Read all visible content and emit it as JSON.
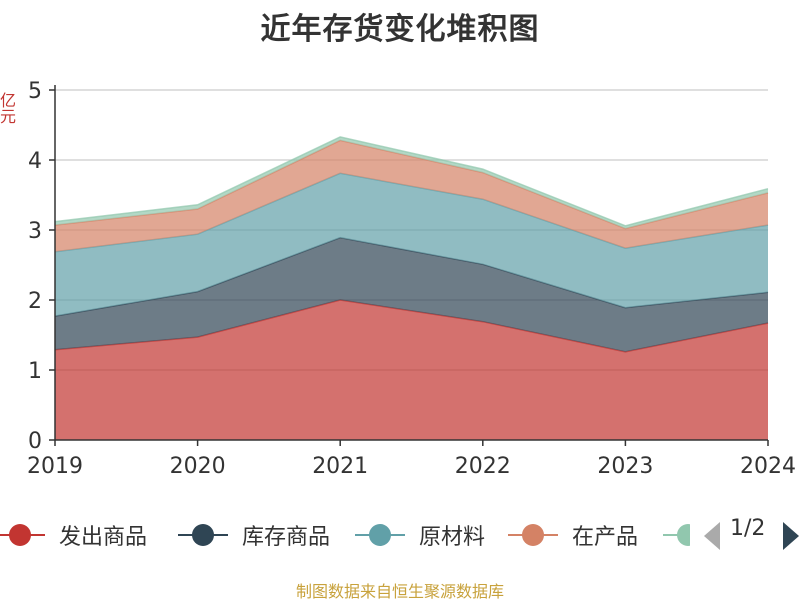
{
  "chart_data": {
    "type": "area",
    "stacked": true,
    "title": "近年存货变化堆积图",
    "ylabel": "亿元",
    "x": [
      "2019",
      "2020",
      "2021",
      "2022",
      "2023",
      "2024"
    ],
    "ylim": [
      0,
      5
    ],
    "yticks": [
      0,
      1,
      2,
      3,
      4,
      5
    ],
    "grid": true,
    "series": [
      {
        "name": "发出商品",
        "color": "#c23531",
        "values": [
          1.29,
          1.47,
          2.0,
          1.69,
          1.26,
          1.67
        ]
      },
      {
        "name": "库存商品",
        "color": "#2f4554",
        "values": [
          0.48,
          0.65,
          0.89,
          0.82,
          0.63,
          0.44
        ]
      },
      {
        "name": "原材料",
        "color": "#61a0a8",
        "values": [
          0.92,
          0.82,
          0.92,
          0.93,
          0.85,
          0.96
        ]
      },
      {
        "name": "在产品",
        "color": "#d48265",
        "values": [
          0.38,
          0.36,
          0.47,
          0.38,
          0.28,
          0.46
        ]
      },
      {
        "name": "",
        "color": "#91c7ae",
        "values": [
          0.05,
          0.06,
          0.05,
          0.05,
          0.04,
          0.06
        ]
      }
    ],
    "legend": {
      "position": "bottom",
      "page": "1/2"
    },
    "source": "制图数据来自恒生聚源数据库"
  }
}
